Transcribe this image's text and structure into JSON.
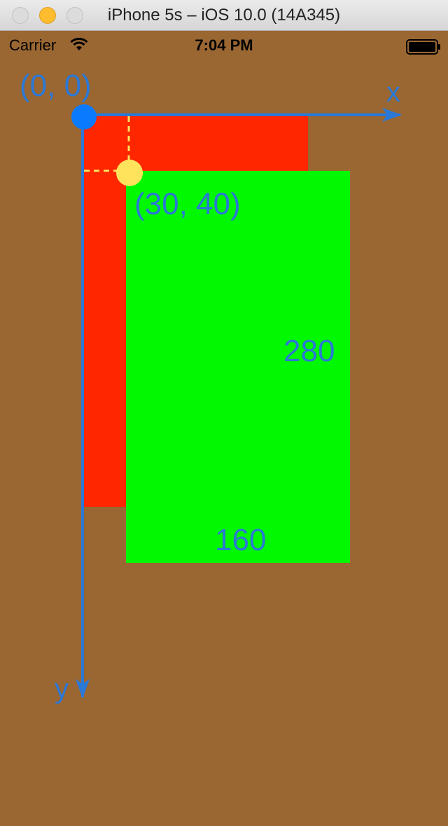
{
  "window": {
    "title": "iPhone 5s – iOS 10.0 (14A345)"
  },
  "status_bar": {
    "carrier": "Carrier",
    "time": "7:04 PM",
    "icons": [
      "wifi-icon",
      "battery-icon"
    ]
  },
  "colors": {
    "background": "#9a6732",
    "red_view": "#ff2600",
    "green_view": "#00f900",
    "axis": "#2b78d6",
    "origin_dot": "#0a7aff",
    "highlight_dot": "#ffe35c"
  },
  "diagram": {
    "origin_label": "(0, 0)",
    "x_axis_label": "x",
    "y_axis_label": "y",
    "point_label": "(30, 40)",
    "height_label": "280",
    "width_label": "160"
  }
}
